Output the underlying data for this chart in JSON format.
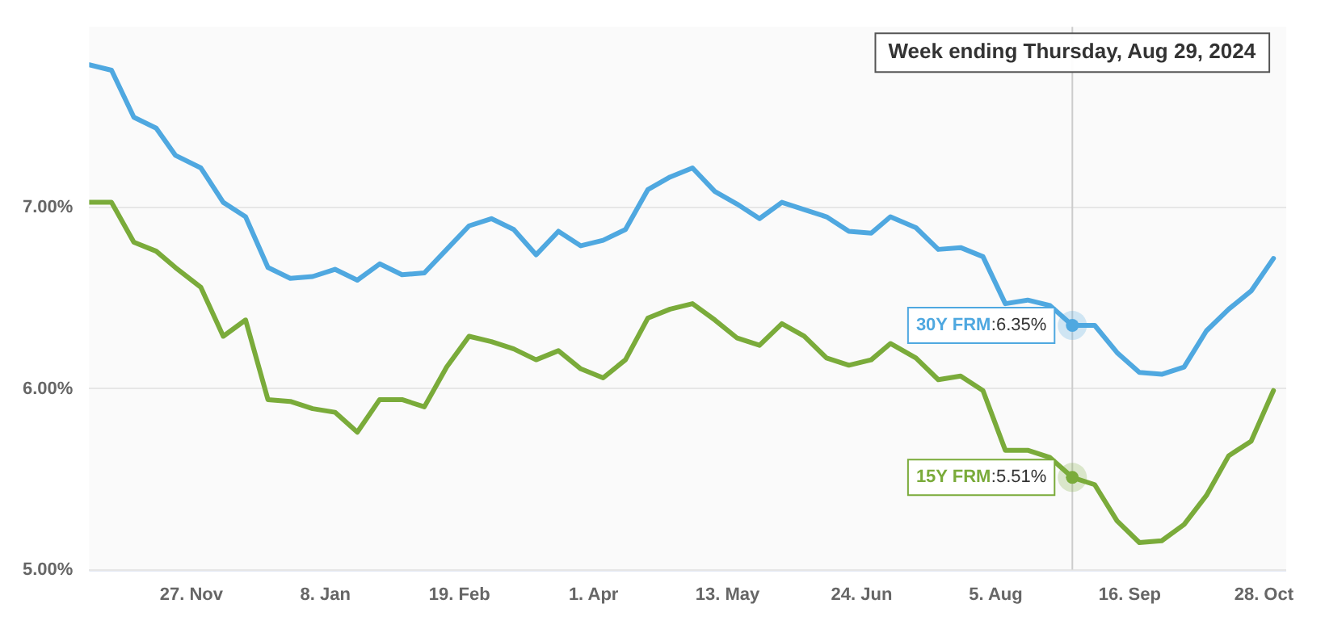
{
  "chart_data": {
    "type": "line",
    "x": [
      "2023-10-26",
      "2023-11-02",
      "2023-11-09",
      "2023-11-16",
      "2023-11-22",
      "2023-11-30",
      "2023-12-07",
      "2023-12-14",
      "2023-12-21",
      "2023-12-28",
      "2024-01-04",
      "2024-01-11",
      "2024-01-18",
      "2024-01-25",
      "2024-02-01",
      "2024-02-08",
      "2024-02-15",
      "2024-02-22",
      "2024-02-29",
      "2024-03-07",
      "2024-03-14",
      "2024-03-21",
      "2024-03-28",
      "2024-04-04",
      "2024-04-11",
      "2024-04-18",
      "2024-04-25",
      "2024-05-02",
      "2024-05-09",
      "2024-05-16",
      "2024-05-23",
      "2024-05-30",
      "2024-06-06",
      "2024-06-13",
      "2024-06-20",
      "2024-06-27",
      "2024-07-03",
      "2024-07-11",
      "2024-07-18",
      "2024-07-25",
      "2024-08-01",
      "2024-08-08",
      "2024-08-15",
      "2024-08-22",
      "2024-08-29",
      "2024-09-05",
      "2024-09-12",
      "2024-09-19",
      "2024-09-26",
      "2024-10-03",
      "2024-10-10",
      "2024-10-17",
      "2024-10-24",
      "2024-10-31"
    ],
    "series": [
      {
        "name": "30Y FRM",
        "color": "#4fa8e0",
        "values": [
          7.79,
          7.76,
          7.5,
          7.44,
          7.29,
          7.22,
          7.03,
          6.95,
          6.67,
          6.61,
          6.62,
          6.66,
          6.6,
          6.69,
          6.63,
          6.64,
          6.77,
          6.9,
          6.94,
          6.88,
          6.74,
          6.87,
          6.79,
          6.82,
          6.88,
          7.1,
          7.17,
          7.22,
          7.09,
          7.02,
          6.94,
          7.03,
          6.99,
          6.95,
          6.87,
          6.86,
          6.95,
          6.89,
          6.77,
          6.78,
          6.73,
          6.47,
          6.49,
          6.46,
          6.35,
          6.35,
          6.2,
          6.09,
          6.08,
          6.12,
          6.32,
          6.44,
          6.54,
          6.72
        ]
      },
      {
        "name": "15Y FRM",
        "color": "#7aab3a",
        "values": [
          7.03,
          7.03,
          6.81,
          6.76,
          6.67,
          6.56,
          6.29,
          6.38,
          5.94,
          5.93,
          5.89,
          5.87,
          5.76,
          5.94,
          5.94,
          5.9,
          6.12,
          6.29,
          6.26,
          6.22,
          6.16,
          6.21,
          6.11,
          6.06,
          6.16,
          6.39,
          6.44,
          6.47,
          6.38,
          6.28,
          6.24,
          6.36,
          6.29,
          6.17,
          6.13,
          6.16,
          6.25,
          6.17,
          6.05,
          6.07,
          5.99,
          5.66,
          5.66,
          5.62,
          5.51,
          5.47,
          5.27,
          5.15,
          5.16,
          5.25,
          5.41,
          5.63,
          5.71,
          5.99
        ]
      }
    ],
    "xlim": [
      "2023-10-26",
      "2024-11-04"
    ],
    "xticks": [
      {
        "value": "2023-11-27",
        "label": "27. Nov"
      },
      {
        "value": "2024-01-08",
        "label": "8. Jan"
      },
      {
        "value": "2024-02-19",
        "label": "19. Feb"
      },
      {
        "value": "2024-04-01",
        "label": "1. Apr"
      },
      {
        "value": "2024-05-13",
        "label": "13. May"
      },
      {
        "value": "2024-06-24",
        "label": "24. Jun"
      },
      {
        "value": "2024-08-05",
        "label": "5. Aug"
      },
      {
        "value": "2024-09-16",
        "label": "16. Sep"
      },
      {
        "value": "2024-10-28",
        "label": "28. Oct"
      }
    ],
    "ylim": [
      5,
      8
    ],
    "yticks": [
      {
        "value": 5,
        "label": "5.00%"
      },
      {
        "value": 6,
        "label": "6.00%"
      },
      {
        "value": 7,
        "label": "7.00%"
      }
    ],
    "grid": "y",
    "legend": false,
    "marker": "none",
    "line_style": "solid",
    "ref_lines": [
      {
        "axis": "x",
        "value": "2024-08-29",
        "label": "Week ending Thursday, Aug 29, 2024",
        "color": "#cccccc"
      }
    ],
    "annotations": [
      {
        "text": ":6.35%",
        "x": "2024-08-29",
        "y": 6.35
      },
      {
        "text": ":5.51%",
        "x": "2024-08-29",
        "y": 5.51
      }
    ]
  }
}
